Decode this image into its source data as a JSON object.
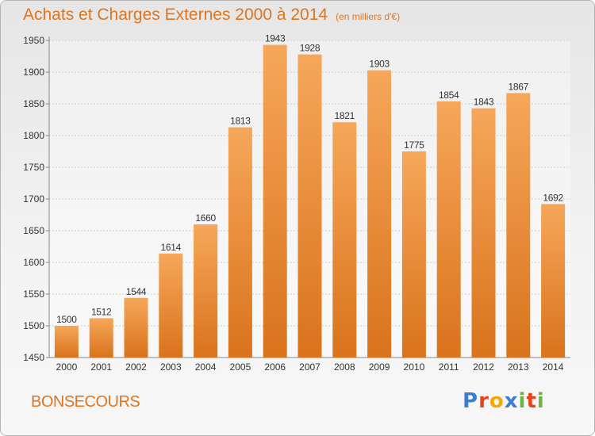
{
  "header": {
    "title": "Achats et Charges Externes 2000 à 2014",
    "unit": "(en milliers d'€)"
  },
  "footer": {
    "city": "BONSECOURS",
    "logo": "Proxiti",
    "logo_colors": [
      "#3c7fd1",
      "#e8441c",
      "#f2a900",
      "#3c7fd1",
      "#6db33f",
      "#e8441c",
      "#6db33f"
    ]
  },
  "colors": {
    "bar_top": "#f6a75a",
    "bar_bottom": "#d9731c",
    "grid": "#cfcfcf",
    "text": "#333333",
    "title": "#e0751f"
  },
  "chart_data": {
    "type": "bar",
    "categories": [
      "2000",
      "2001",
      "2002",
      "2003",
      "2004",
      "2005",
      "2006",
      "2007",
      "2008",
      "2009",
      "2010",
      "2011",
      "2012",
      "2013",
      "2014"
    ],
    "values": [
      1500,
      1512,
      1544,
      1614,
      1660,
      1813,
      1943,
      1928,
      1821,
      1903,
      1775,
      1854,
      1843,
      1867,
      1692
    ],
    "ylim": [
      1450,
      1950
    ],
    "yticks": [
      1450,
      1500,
      1550,
      1600,
      1650,
      1700,
      1750,
      1800,
      1850,
      1900,
      1950
    ],
    "grid": true,
    "title": "Achats et Charges Externes 2000 à 2014",
    "xlabel": "",
    "ylabel": ""
  }
}
